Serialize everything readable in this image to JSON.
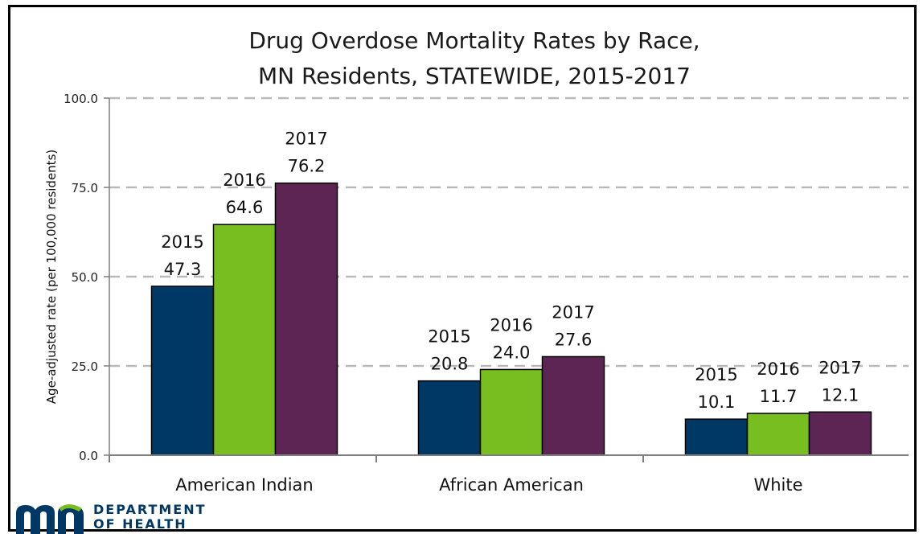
{
  "chart_data": {
    "type": "bar",
    "title_lines": [
      "Drug Overdose Mortality Rates by Race,",
      "MN Residents, STATEWIDE, 2015-2017"
    ],
    "xlabel": "",
    "ylabel": "Age-adjusted rate (per 100,000 residents)",
    "categories": [
      "American Indian",
      "African American",
      "White"
    ],
    "ylim": [
      0,
      100
    ],
    "yticks": [
      "0.0",
      "25.0",
      "50.0",
      "75.0",
      "100.0"
    ],
    "grid": true,
    "series": [
      {
        "name": "2015",
        "color": "#003865",
        "values": [
          47.3,
          20.8,
          10.1
        ],
        "labels": [
          "47.3",
          "20.8",
          "10.1"
        ]
      },
      {
        "name": "2016",
        "color": "#78be21",
        "values": [
          64.6,
          24.0,
          11.7
        ],
        "labels": [
          "64.6",
          "24.0",
          "11.7"
        ]
      },
      {
        "name": "2017",
        "color": "#5c2553",
        "values": [
          76.2,
          27.6,
          12.1
        ],
        "labels": [
          "76.2",
          "27.6",
          "12.1"
        ]
      }
    ]
  },
  "logo": {
    "line1": "DEPARTMENT",
    "line2": "OF HEALTH",
    "mark_color": "#003865",
    "accent_color": "#78be21"
  }
}
